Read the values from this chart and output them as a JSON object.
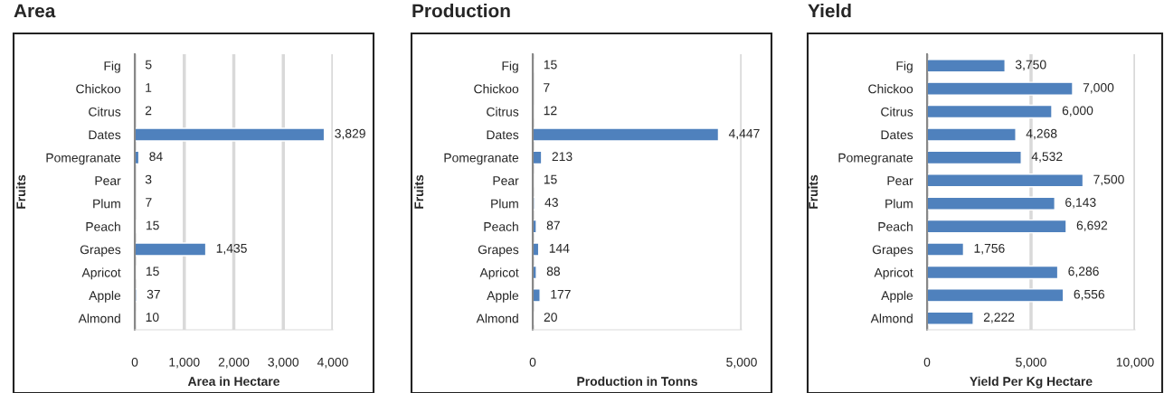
{
  "chart_data": [
    {
      "type": "bar",
      "orientation": "horizontal",
      "title": "Area",
      "xlabel": "Area in Hectare",
      "ylabel": "Fruits",
      "categories": [
        "Fig",
        "Chickoo",
        "Citrus",
        "Dates",
        "Pomegranate",
        "Pear",
        "Plum",
        "Peach",
        "Grapes",
        "Apricot",
        "Apple",
        "Almond"
      ],
      "values": [
        5,
        1,
        2,
        3829,
        84,
        3,
        7,
        15,
        1435,
        15,
        37,
        10
      ],
      "value_labels": [
        "5",
        "1",
        "2",
        "3,829",
        "84",
        "3",
        "7",
        "15",
        "1,435",
        "15",
        "37",
        "10"
      ],
      "color": "#4f81bd",
      "xlim": [
        0,
        4000
      ],
      "xticks": [
        0,
        {
          "value": 1000,
          "label": "1,000"
        },
        {
          "value": 2000,
          "label": "2,000"
        },
        {
          "value": 3000,
          "label": "3,000"
        },
        {
          "value": 4000,
          "label": "4,000"
        }
      ],
      "grid": "x"
    },
    {
      "type": "bar",
      "orientation": "horizontal",
      "title": "Production",
      "xlabel": "Production in Tonns",
      "ylabel": "Fruits",
      "categories": [
        "Fig",
        "Chickoo",
        "Citrus",
        "Dates",
        "Pomegranate",
        "Pear",
        "Plum",
        "Peach",
        "Grapes",
        "Apricot",
        "Apple",
        "Almond"
      ],
      "values": [
        15,
        7,
        12,
        4447,
        213,
        15,
        43,
        87,
        144,
        88,
        177,
        20
      ],
      "value_labels": [
        "15",
        "7",
        "12",
        "4,447",
        "213",
        "15",
        "43",
        "87",
        "144",
        "88",
        "177",
        "20"
      ],
      "color": "#4f81bd",
      "xlim": [
        0,
        5000
      ],
      "xticks": [
        0,
        {
          "value": 5000,
          "label": "5,000"
        }
      ],
      "grid": "x"
    },
    {
      "type": "bar",
      "orientation": "horizontal",
      "title": "Yield",
      "xlabel": "Yield Per Kg Hectare",
      "ylabel": "Fruits",
      "categories": [
        "Fig",
        "Chickoo",
        "Citrus",
        "Dates",
        "Pomegranate",
        "Pear",
        "Plum",
        "Peach",
        "Grapes",
        "Apricot",
        "Apple",
        "Almond"
      ],
      "values": [
        3750,
        7000,
        6000,
        4268,
        4532,
        7500,
        6143,
        6692,
        1756,
        6286,
        6556,
        2222
      ],
      "value_labels": [
        "3,750",
        "7,000",
        "6,000",
        "4,268",
        "4,532",
        "7,500",
        "6,143",
        "6,692",
        "1,756",
        "6,286",
        "6,556",
        "2,222"
      ],
      "color": "#4f81bd",
      "xlim": [
        0,
        10000
      ],
      "xticks": [
        0,
        {
          "value": 5000,
          "label": "5,000"
        },
        {
          "value": 10000,
          "label": "10,000"
        }
      ],
      "grid": "x"
    }
  ]
}
